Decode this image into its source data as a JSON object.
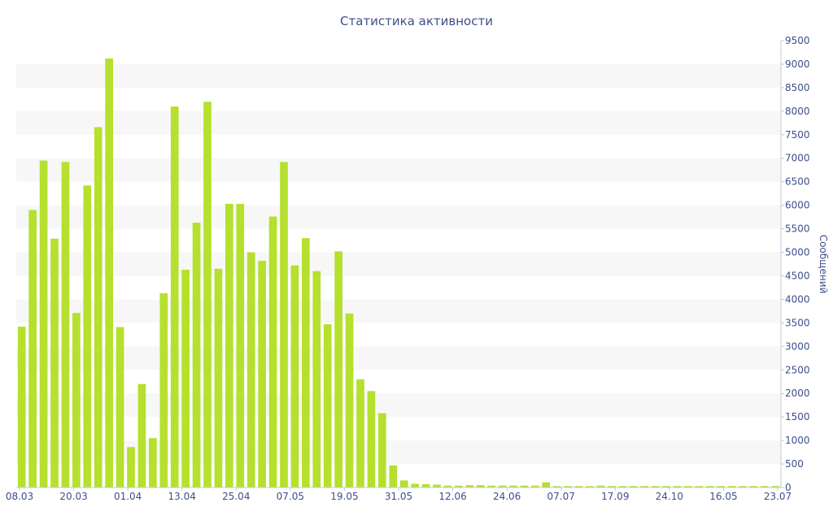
{
  "chart_data": {
    "type": "bar",
    "title": "Статистика активности",
    "ylabel": "Сообщений",
    "xlabel": "",
    "ylim": [
      0,
      9500
    ],
    "y_ticks": [
      0,
      500,
      1000,
      1500,
      2000,
      2500,
      3000,
      3500,
      4000,
      4500,
      5000,
      5500,
      6000,
      6500,
      7000,
      7500,
      8000,
      8500,
      9000,
      9500
    ],
    "x_tick_labels": [
      "08.03",
      "20.03",
      "01.04",
      "13.04",
      "25.04",
      "07.05",
      "19.05",
      "31.05",
      "12.06",
      "24.06",
      "07.07",
      "17.09",
      "24.10",
      "16.05",
      "23.07"
    ],
    "grid": "alternating horizontal bands",
    "bar_color": "#b5e02d",
    "band_color": "#f7f7f7",
    "text_color": "#3e4f8a",
    "values": [
      3420,
      5900,
      6950,
      5290,
      6920,
      3710,
      6420,
      7660,
      9120,
      3410,
      860,
      2200,
      1050,
      4130,
      8100,
      4630,
      5630,
      8200,
      4650,
      6030,
      6030,
      5000,
      4820,
      5760,
      6920,
      4720,
      5300,
      4600,
      3470,
      5020,
      3700,
      2300,
      2050,
      1580,
      470,
      150,
      80,
      70,
      60,
      40,
      40,
      50,
      50,
      40,
      40,
      40,
      40,
      40,
      110,
      30,
      30,
      30,
      30,
      40,
      30,
      30,
      30,
      30,
      30,
      30,
      30,
      30,
      30,
      30,
      30,
      30,
      30,
      30,
      30,
      30
    ]
  }
}
